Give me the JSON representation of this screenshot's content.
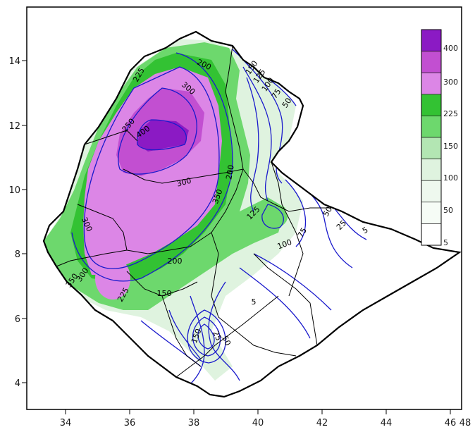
{
  "map": {
    "x_ticks": [
      "34",
      "36",
      "38",
      "40",
      "42",
      "44",
      "46",
      "48"
    ],
    "y_ticks": [
      "14",
      "12",
      "10",
      "8",
      "6",
      "4"
    ],
    "contour_labels": [
      "400",
      "300",
      "300",
      "250",
      "200",
      "225",
      "150",
      "125",
      "100",
      "75",
      "50",
      "200",
      "300",
      "350",
      "125",
      "100",
      "75",
      "50",
      "25",
      "5",
      "5",
      "200",
      "225",
      "150",
      "300",
      "350",
      "150",
      "25",
      "50"
    ],
    "legend": {
      "labels": [
        "400",
        "300",
        "225",
        "150",
        "100",
        "50",
        "5"
      ],
      "bins": [
        {
          "color": "#8b1ac4"
        },
        {
          "color": "#c24fd1"
        },
        {
          "color": "#dc86e6"
        },
        {
          "color": "#33c233"
        },
        {
          "color": "#6dd86d"
        },
        {
          "color": "#b3e6b3"
        },
        {
          "color": "#dff3df"
        },
        {
          "color": "#eef8ee"
        },
        {
          "color": "#f6fcf6"
        },
        {
          "color": "#ffffff"
        }
      ]
    },
    "colors": {
      "contour": "#1a1acc",
      "boundary": "#000000",
      "frame": "#000000"
    }
  }
}
